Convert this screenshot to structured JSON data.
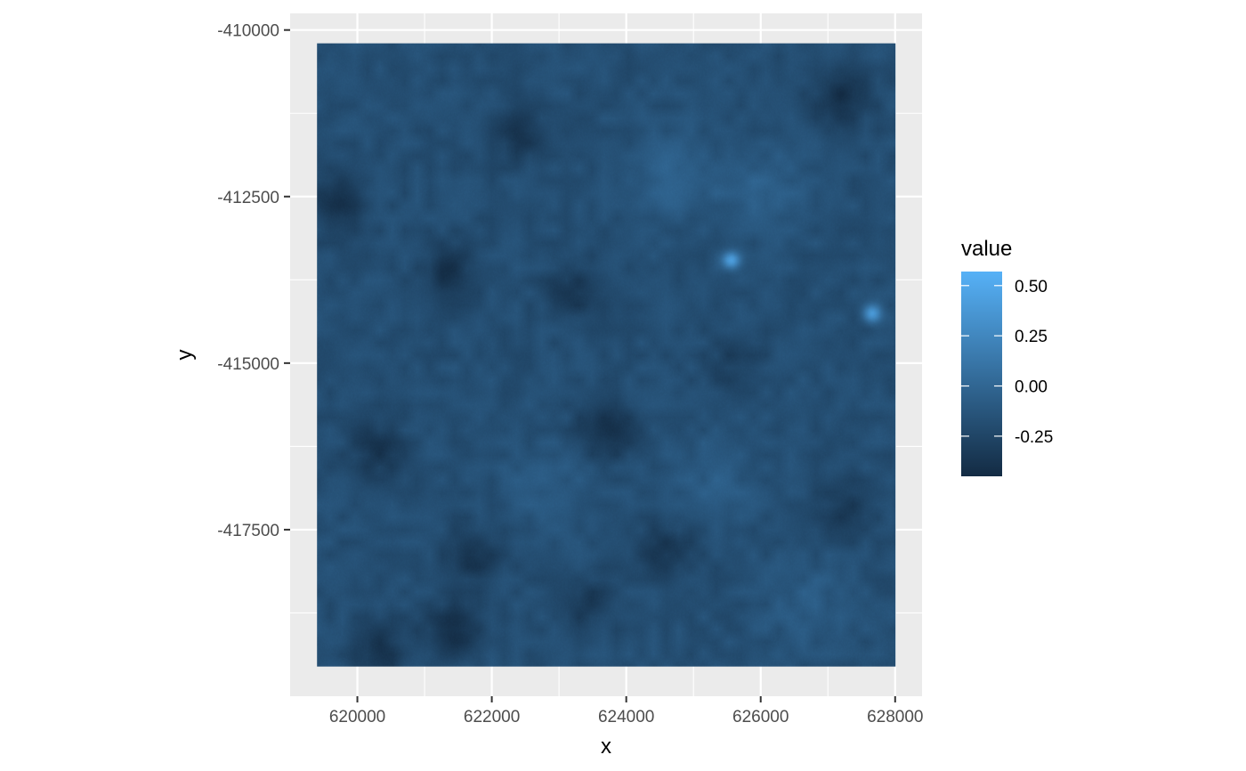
{
  "chart_data": {
    "type": "heatmap",
    "xlabel": "x",
    "ylabel": "y",
    "x_ticks": [
      620000,
      622000,
      624000,
      626000,
      628000
    ],
    "y_ticks": [
      -410000,
      -412500,
      -415000,
      -417500
    ],
    "xlim": [
      619000,
      628400
    ],
    "ylim": [
      -420000,
      -409750
    ],
    "raster_extent": {
      "x": [
        619400,
        628000
      ],
      "y": [
        -419550,
        -410200
      ]
    },
    "grid": true,
    "panel_background": "#ebebeb",
    "legend": {
      "title": "value",
      "position": "right",
      "range": [
        -0.45,
        0.57
      ],
      "breaks": [
        0.5,
        0.25,
        0.0,
        -0.25
      ],
      "break_labels": [
        "0.50",
        "0.25",
        "0.00",
        "-0.25"
      ],
      "color_low": "#132b43",
      "color_high": "#56b1f7"
    },
    "field": {
      "base_value": -0.18,
      "features": [
        {
          "x": 625550,
          "y": -413450,
          "value": 0.45,
          "kind": "bright"
        },
        {
          "x": 627650,
          "y": -414250,
          "value": 0.35,
          "kind": "bright"
        },
        {
          "x": 623700,
          "y": -416000,
          "value": -0.42,
          "kind": "dark"
        },
        {
          "x": 621350,
          "y": -413650,
          "value": -0.38,
          "kind": "dark"
        },
        {
          "x": 620300,
          "y": -416300,
          "value": -0.36,
          "kind": "dark"
        },
        {
          "x": 619700,
          "y": -412600,
          "value": -0.4,
          "kind": "dark"
        },
        {
          "x": 622400,
          "y": -411600,
          "value": -0.35,
          "kind": "dark"
        },
        {
          "x": 623200,
          "y": -413900,
          "value": -0.36,
          "kind": "dark"
        },
        {
          "x": 621700,
          "y": -417900,
          "value": -0.37,
          "kind": "dark"
        },
        {
          "x": 621400,
          "y": -419000,
          "value": -0.4,
          "kind": "dark"
        },
        {
          "x": 620300,
          "y": -419300,
          "value": -0.38,
          "kind": "dark"
        },
        {
          "x": 627200,
          "y": -411000,
          "value": -0.4,
          "kind": "dark"
        },
        {
          "x": 627300,
          "y": -417200,
          "value": -0.35,
          "kind": "dark"
        },
        {
          "x": 624600,
          "y": -417800,
          "value": -0.36,
          "kind": "dark"
        },
        {
          "x": 623400,
          "y": -418600,
          "value": -0.34,
          "kind": "dark"
        },
        {
          "x": 625600,
          "y": -415000,
          "value": -0.3,
          "kind": "dark"
        },
        {
          "x": 624700,
          "y": -412200,
          "value": -0.05,
          "kind": "light"
        },
        {
          "x": 626000,
          "y": -412400,
          "value": -0.05,
          "kind": "light"
        },
        {
          "x": 622800,
          "y": -416900,
          "value": -0.08,
          "kind": "light"
        },
        {
          "x": 626700,
          "y": -418600,
          "value": -0.08,
          "kind": "light"
        },
        {
          "x": 625300,
          "y": -416800,
          "value": -0.08,
          "kind": "light"
        }
      ]
    }
  }
}
